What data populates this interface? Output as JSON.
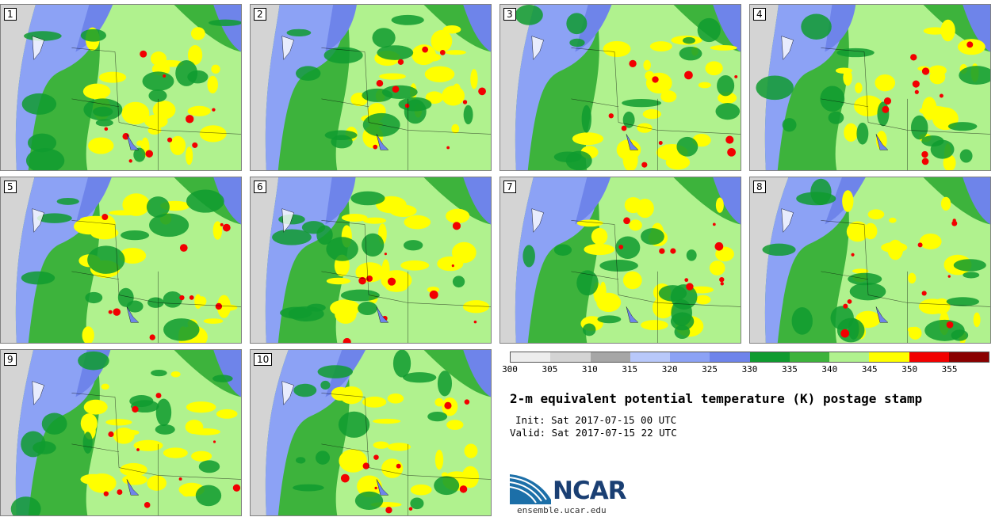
{
  "members": [
    "1",
    "2",
    "3",
    "4",
    "5",
    "6",
    "7",
    "8",
    "9",
    "10"
  ],
  "colorbar": {
    "ticks": [
      "300",
      "305",
      "310",
      "315",
      "320",
      "325",
      "330",
      "335",
      "340",
      "345",
      "350",
      "355"
    ],
    "colors": [
      "#ededed",
      "#d4d4d4",
      "#a6a6a6",
      "#b8c8fa",
      "#8ca2f5",
      "#6e84ea",
      "#0f9b2f",
      "#3db33c",
      "#b0f28e",
      "#ffff00",
      "#f20000",
      "#8a0000"
    ]
  },
  "title": "2-m equivalent potential temperature (K) postage stamp",
  "init": "Init: Sat 2017-07-15 00 UTC",
  "valid": "Valid: Sat 2017-07-15 22 UTC",
  "logo": {
    "text": "NCAR",
    "url": "ensemble.ucar.edu"
  }
}
